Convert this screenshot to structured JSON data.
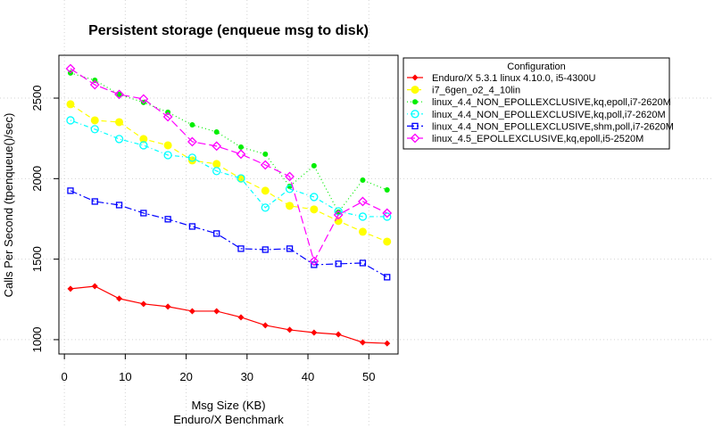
{
  "chart_data": {
    "type": "line",
    "title": "Persistent storage (enqueue msg to disk)",
    "xlabel": "Msg Size (KB)",
    "subtitle": "Enduro/X Benchmark",
    "ylabel": "Calls Per Second (tpenqueue()/sec)",
    "xlim": [
      -0.9,
      54.8
    ],
    "ylim": [
      911,
      2766
    ],
    "xticks": [
      0,
      10,
      20,
      30,
      40,
      50
    ],
    "yticks": [
      1000,
      1500,
      2000,
      2500
    ],
    "grid": true,
    "legend": {
      "title": "Configuration",
      "placement": "outside-right-top"
    },
    "x": [
      1,
      5,
      9,
      13,
      17,
      21,
      25,
      29,
      33,
      37,
      41,
      45,
      49,
      53
    ],
    "series": [
      {
        "name": "Enduro/X 5.3.1 linux 4.10.0, i5-4300U",
        "color": "#ff0000",
        "marker": "filled-diamond",
        "line": "solid",
        "values": [
          1316,
          1332,
          1255,
          1222,
          1205,
          1177,
          1177,
          1139,
          1089,
          1061,
          1044,
          1033,
          983,
          977
        ]
      },
      {
        "name": "i7_6gen_o2_4_10lin",
        "color": "#ffff00",
        "marker": "filled-circle",
        "line": "dashed",
        "values": [
          2462,
          2362,
          2351,
          2246,
          2207,
          2113,
          2091,
          2000,
          1925,
          1831,
          1809,
          1737,
          1670,
          1609
        ]
      },
      {
        "name": "linux_4.4_NON_EPOLLEXCLUSIVE,kq,epoll,i7-2620M",
        "color": "#00ee00",
        "marker": "small-filled-circle",
        "line": "dotted",
        "values": [
          2656,
          2611,
          2523,
          2473,
          2412,
          2334,
          2290,
          2196,
          2152,
          1952,
          2080,
          1792,
          1991,
          1930
        ]
      },
      {
        "name": "linux_4.4_NON_EPOLLEXCLUSIVE,kq,poll,i7-2620M",
        "color": "#00ffff",
        "marker": "open-circle",
        "line": "dotdash",
        "values": [
          2362,
          2307,
          2246,
          2207,
          2146,
          2130,
          2047,
          2002,
          1820,
          1936,
          1886,
          1797,
          1764,
          1764
        ]
      },
      {
        "name": "linux_4.4_NON_EPOLLEXCLUSIVE,shm,poll,i7-2620M",
        "color": "#0000ff",
        "marker": "open-square",
        "line": "longdash-dot",
        "values": [
          1925,
          1858,
          1836,
          1786,
          1748,
          1703,
          1659,
          1565,
          1559,
          1565,
          1465,
          1471,
          1476,
          1388
        ]
      },
      {
        "name": "linux_4.5_EPOLLEXCLUSIVE,kq,epoll,i5-2520M",
        "color": "#ff00ff",
        "marker": "open-diamond",
        "line": "longdash",
        "values": [
          2683,
          2583,
          2523,
          2495,
          2384,
          2229,
          2202,
          2152,
          2085,
          2013,
          1487,
          1775,
          1858,
          1786
        ]
      }
    ]
  }
}
